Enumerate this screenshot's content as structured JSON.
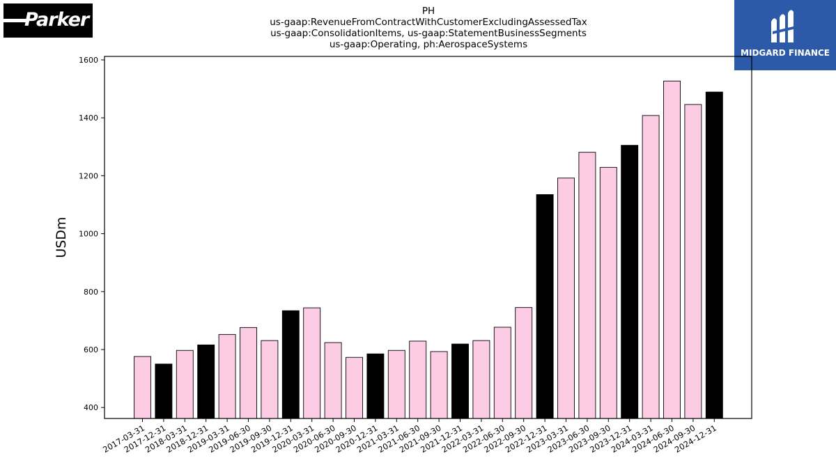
{
  "logos": {
    "left_text": "Parker",
    "right_text": "MIDGARD FINANCE"
  },
  "chart_data": {
    "type": "bar",
    "title_lines": [
      "PH",
      "us-gaap:RevenueFromContractWithCustomerExcludingAssessedTax",
      "us-gaap:ConsolidationItems, us-gaap:StatementBusinessSegments",
      "us-gaap:Operating, ph:AerospaceSystems"
    ],
    "ylabel": "USDm",
    "ylim": [
      362,
      1612
    ],
    "yticks": [
      400,
      600,
      800,
      1000,
      1200,
      1400,
      1600
    ],
    "grid": false,
    "colors": {
      "quarter": "#fccbe4",
      "year_end": "#000000",
      "edge": "#000000"
    },
    "categories": [
      "2017-03-31",
      "2017-12-31",
      "2018-03-31",
      "2018-12-31",
      "2019-03-31",
      "2019-06-30",
      "2019-09-30",
      "2019-12-31",
      "2020-03-31",
      "2020-06-30",
      "2020-09-30",
      "2020-12-31",
      "2021-03-31",
      "2021-06-30",
      "2021-09-30",
      "2021-12-31",
      "2022-03-31",
      "2022-06-30",
      "2022-09-30",
      "2022-12-31",
      "2023-03-31",
      "2023-06-30",
      "2023-09-30",
      "2023-12-31",
      "2024-03-31",
      "2024-06-30",
      "2024-09-30",
      "2024-12-31"
    ],
    "values": [
      576,
      550,
      597,
      616,
      652,
      676,
      631,
      734,
      744,
      624,
      573,
      585,
      597,
      629,
      593,
      619,
      631,
      677,
      745,
      1135,
      1192,
      1281,
      1229,
      1305,
      1408,
      1527,
      1446,
      1489
    ],
    "highlight": [
      false,
      true,
      false,
      true,
      false,
      false,
      false,
      true,
      false,
      false,
      false,
      true,
      false,
      false,
      false,
      true,
      false,
      false,
      false,
      true,
      false,
      false,
      false,
      true,
      false,
      false,
      false,
      true
    ]
  }
}
